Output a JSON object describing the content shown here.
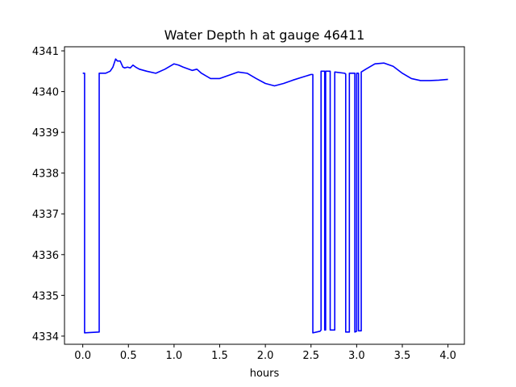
{
  "chart_data": {
    "type": "line",
    "title": "Water Depth h at gauge 46411",
    "xlabel": "hours",
    "ylabel": "",
    "xlim": [
      -0.2,
      4.18
    ],
    "ylim": [
      4333.8,
      4341.1
    ],
    "xticks": [
      0.0,
      0.5,
      1.0,
      1.5,
      2.0,
      2.5,
      3.0,
      3.5,
      4.0
    ],
    "xtick_labels": [
      "0.0",
      "0.5",
      "1.0",
      "1.5",
      "2.0",
      "2.5",
      "3.0",
      "3.5",
      "4.0"
    ],
    "yticks": [
      4334,
      4335,
      4336,
      4337,
      4338,
      4339,
      4340,
      4341
    ],
    "ytick_labels": [
      "4334",
      "4335",
      "4336",
      "4337",
      "4338",
      "4339",
      "4340",
      "4341"
    ],
    "grid": false,
    "series": [
      {
        "name": "",
        "color": "#0000ff",
        "x": [
          0.0,
          0.02,
          0.02,
          0.18,
          0.18,
          0.25,
          0.3,
          0.33,
          0.36,
          0.38,
          0.41,
          0.44,
          0.46,
          0.49,
          0.52,
          0.55,
          0.58,
          0.62,
          0.7,
          0.8,
          0.9,
          1.0,
          1.05,
          1.1,
          1.2,
          1.25,
          1.3,
          1.4,
          1.5,
          1.6,
          1.7,
          1.8,
          1.9,
          2.0,
          2.1,
          2.2,
          2.3,
          2.4,
          2.5,
          2.52,
          2.52,
          2.6,
          2.61,
          2.61,
          2.65,
          2.65,
          2.66,
          2.66,
          2.71,
          2.71,
          2.76,
          2.76,
          2.87,
          2.88,
          2.88,
          2.92,
          2.92,
          2.98,
          2.98,
          3.0,
          3.0,
          3.02,
          3.02,
          3.05,
          3.05,
          3.1,
          3.2,
          3.3,
          3.4,
          3.5,
          3.6,
          3.7,
          3.8,
          3.9,
          4.0
        ],
        "y": [
          4340.45,
          4340.45,
          4334.08,
          4334.1,
          4340.45,
          4340.45,
          4340.5,
          4340.6,
          4340.8,
          4340.75,
          4340.75,
          4340.6,
          4340.58,
          4340.6,
          4340.58,
          4340.65,
          4340.6,
          4340.55,
          4340.5,
          4340.45,
          4340.55,
          4340.68,
          4340.65,
          4340.6,
          4340.52,
          4340.55,
          4340.45,
          4340.32,
          4340.32,
          4340.4,
          4340.48,
          4340.45,
          4340.32,
          4340.2,
          4340.14,
          4340.2,
          4340.28,
          4340.35,
          4340.42,
          4340.42,
          4334.08,
          4334.12,
          4334.15,
          4340.5,
          4340.5,
          4334.15,
          4334.15,
          4340.5,
          4340.5,
          4334.15,
          4334.15,
          4340.48,
          4340.45,
          4340.43,
          4334.1,
          4334.1,
          4340.45,
          4340.45,
          4334.1,
          4334.12,
          4340.45,
          4340.45,
          4334.13,
          4334.13,
          4340.48,
          4340.55,
          4340.68,
          4340.7,
          4340.62,
          4340.45,
          4340.32,
          4340.27,
          4340.27,
          4340.28,
          4340.3
        ]
      }
    ]
  }
}
